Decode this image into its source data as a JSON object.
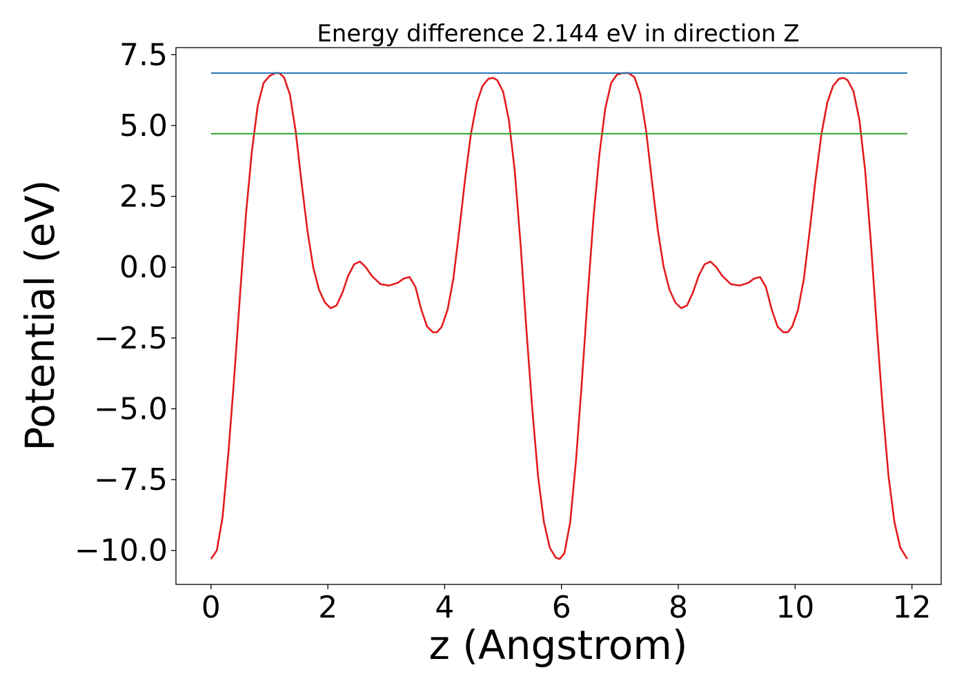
{
  "chart_data": {
    "type": "line",
    "title": "Energy difference 2.144 eV in direction Z",
    "xlabel": "z (Angstrom)",
    "ylabel": "Potential (eV)",
    "xlim": [
      -0.6,
      12.5
    ],
    "ylim": [
      -11.2,
      7.75
    ],
    "x_ticks": [
      0,
      2,
      4,
      6,
      8,
      10,
      12
    ],
    "x_tick_labels": [
      "0",
      "2",
      "4",
      "6",
      "8",
      "10",
      "12"
    ],
    "y_ticks": [
      -10.0,
      -7.5,
      -5.0,
      -2.5,
      0.0,
      2.5,
      5.0,
      7.5
    ],
    "y_tick_labels": [
      "−10.0",
      "−7.5",
      "−5.0",
      "−2.5",
      "0.0",
      "2.5",
      "5.0",
      "7.5"
    ],
    "grid": false,
    "colors": {
      "potential": "#e31a1c",
      "upper_level": "#1f77b4",
      "lower_level": "#2ca02c"
    },
    "series": [
      {
        "key": "potential",
        "x": [
          0.0,
          0.1,
          0.2,
          0.3,
          0.4,
          0.5,
          0.6,
          0.7,
          0.8,
          0.9,
          1.0,
          1.1,
          1.17,
          1.25,
          1.35,
          1.45,
          1.55,
          1.65,
          1.75,
          1.85,
          1.95,
          2.05,
          2.15,
          2.25,
          2.35,
          2.45,
          2.55,
          2.65,
          2.75,
          2.9,
          3.05,
          3.2,
          3.3,
          3.4,
          3.5,
          3.6,
          3.7,
          3.8,
          3.87,
          3.95,
          4.05,
          4.15,
          4.25,
          4.35,
          4.45,
          4.55,
          4.65,
          4.75,
          4.83,
          4.9,
          5.0,
          5.1,
          5.2,
          5.3,
          5.4,
          5.5,
          5.6,
          5.7,
          5.8,
          5.9,
          5.97,
          6.05,
          6.15,
          6.25,
          6.35,
          6.45,
          6.55,
          6.65,
          6.75,
          6.85,
          6.95,
          7.05,
          7.15,
          7.25,
          7.35,
          7.45,
          7.55,
          7.65,
          7.75,
          7.85,
          7.95,
          8.05,
          8.15,
          8.25,
          8.35,
          8.45,
          8.55,
          8.65,
          8.75,
          8.9,
          9.05,
          9.2,
          9.3,
          9.4,
          9.5,
          9.6,
          9.7,
          9.8,
          9.87,
          9.95,
          10.05,
          10.15,
          10.25,
          10.35,
          10.45,
          10.55,
          10.65,
          10.75,
          10.83,
          10.9,
          11.0,
          11.1,
          11.2,
          11.3,
          11.4,
          11.5,
          11.6,
          11.7,
          11.8,
          11.92
        ],
        "values": [
          -10.3,
          -10.0,
          -8.8,
          -6.5,
          -3.8,
          -0.9,
          1.9,
          4.1,
          5.7,
          6.5,
          6.75,
          6.85,
          6.85,
          6.7,
          6.1,
          4.8,
          3.0,
          1.3,
          0.0,
          -0.8,
          -1.25,
          -1.45,
          -1.35,
          -0.9,
          -0.3,
          0.1,
          0.2,
          0.0,
          -0.3,
          -0.6,
          -0.65,
          -0.55,
          -0.4,
          -0.35,
          -0.7,
          -1.5,
          -2.1,
          -2.3,
          -2.3,
          -2.1,
          -1.5,
          -0.4,
          1.3,
          3.1,
          4.7,
          5.8,
          6.4,
          6.65,
          6.68,
          6.6,
          6.2,
          5.2,
          3.4,
          0.8,
          -2.2,
          -5.0,
          -7.4,
          -9.0,
          -9.9,
          -10.25,
          -10.3,
          -10.1,
          -9.0,
          -6.8,
          -4.0,
          -1.0,
          1.8,
          4.0,
          5.6,
          6.5,
          6.8,
          6.85,
          6.85,
          6.7,
          6.1,
          4.8,
          3.0,
          1.3,
          0.0,
          -0.8,
          -1.25,
          -1.45,
          -1.35,
          -0.9,
          -0.3,
          0.1,
          0.2,
          0.0,
          -0.3,
          -0.6,
          -0.65,
          -0.55,
          -0.4,
          -0.35,
          -0.7,
          -1.5,
          -2.1,
          -2.3,
          -2.3,
          -2.1,
          -1.5,
          -0.4,
          1.3,
          3.1,
          4.7,
          5.8,
          6.4,
          6.65,
          6.68,
          6.6,
          6.2,
          5.2,
          3.4,
          0.8,
          -2.2,
          -5.0,
          -7.4,
          -9.0,
          -9.9,
          -10.3
        ]
      },
      {
        "key": "upper_level",
        "x": [
          0.0,
          11.92
        ],
        "values": [
          6.85,
          6.85
        ]
      },
      {
        "key": "lower_level",
        "x": [
          0.0,
          11.92
        ],
        "values": [
          4.71,
          4.71
        ]
      }
    ]
  }
}
